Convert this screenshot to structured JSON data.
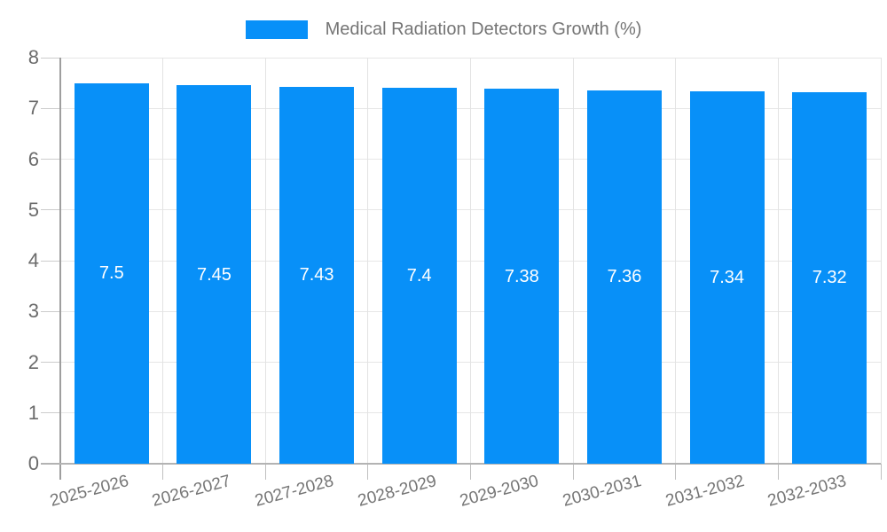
{
  "legend": {
    "label": "Medical Radiation Detectors Growth (%)"
  },
  "chart_data": {
    "type": "bar",
    "title": "Medical Radiation Detectors Growth (%)",
    "categories": [
      "2025-2026",
      "2026-2027",
      "2027-2028",
      "2028-2029",
      "2029-2030",
      "2030-2031",
      "2031-2032",
      "2032-2033"
    ],
    "values": [
      7.5,
      7.45,
      7.43,
      7.4,
      7.38,
      7.36,
      7.34,
      7.32
    ],
    "bar_labels": [
      "7.5",
      "7.45",
      "7.43",
      "7.4",
      "7.38",
      "7.36",
      "7.34",
      "7.32"
    ],
    "xlabel": "",
    "ylabel": "",
    "ylim": [
      0,
      8
    ],
    "yticks": [
      0,
      1,
      2,
      3,
      4,
      5,
      6,
      7,
      8
    ],
    "grid": true,
    "legend_position": "top-center",
    "bar_color": "#0890f8",
    "value_label_color": "#ffffff"
  },
  "colors": {
    "background": "#ffffff",
    "bar": "#0890f8",
    "legend_text": "#757575",
    "axis_tick_text": "#6b6b6b",
    "gridline": "#e6e6e6",
    "axis_line": "#9e9e9e"
  }
}
